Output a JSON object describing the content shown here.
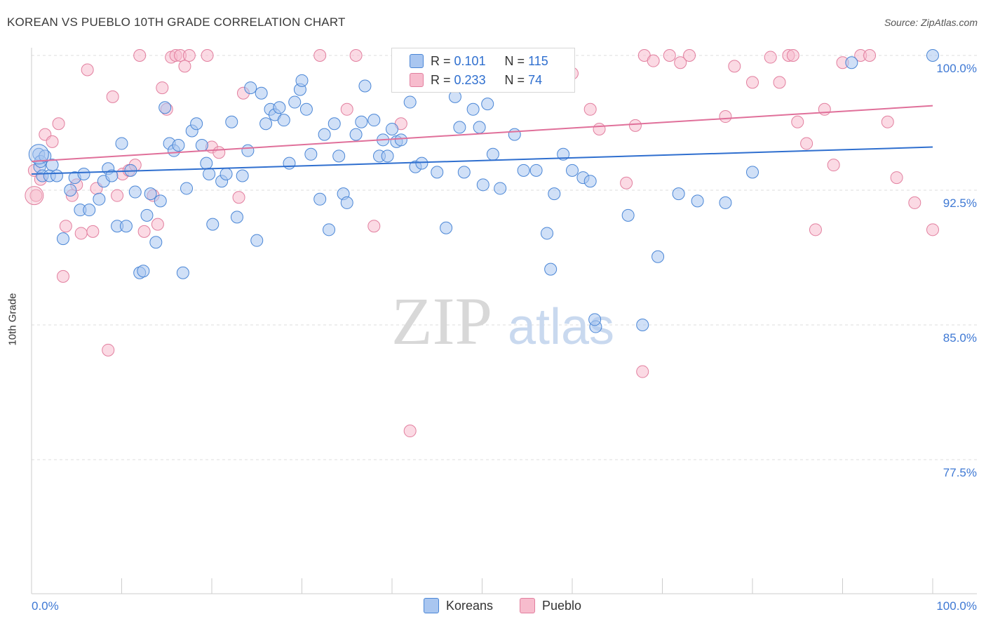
{
  "title": "KOREAN VS PUEBLO 10TH GRADE CORRELATION CHART",
  "source": "Source: ZipAtlas.com",
  "watermark": {
    "zip": "ZIP",
    "atlas": "atlas"
  },
  "legend": {
    "rows": [
      {
        "r_label": "R =",
        "r_value": "0.101",
        "n_label": "N =",
        "n_value": "115"
      },
      {
        "r_label": "R =",
        "r_value": "0.233",
        "n_label": "N =",
        "n_value": "74"
      }
    ]
  },
  "colors": {
    "korean_fill": "#a9c6f0",
    "korean_stroke": "#4a86d6",
    "korean_line": "#2f6fcf",
    "pueblo_fill": "#f7bccd",
    "pueblo_stroke": "#e27f9f",
    "pueblo_line": "#e0709a",
    "axis_label": "#3f79d4"
  },
  "chart_data": {
    "type": "scatter",
    "title": "KOREAN VS PUEBLO 10TH GRADE CORRELATION CHART",
    "xlabel": "",
    "ylabel": "10th Grade",
    "xlim": [
      0,
      100
    ],
    "ylim": [
      70.5,
      101.5
    ],
    "x_tick_labels": [
      "0.0%",
      "100.0%"
    ],
    "y_ticks": [
      77.5,
      85.0,
      92.5,
      100.0
    ],
    "y_tick_labels": [
      "77.5%",
      "85.0%",
      "92.5%",
      "100.0%"
    ],
    "grid": true,
    "legend_position": "top-center",
    "series": [
      {
        "name": "Koreans",
        "r": 0.101,
        "n": 115,
        "trend": {
          "x": [
            0,
            100
          ],
          "y": [
            93.4,
            94.9
          ]
        },
        "points": [
          [
            0.8,
            94.5
          ],
          [
            0.9,
            93.8
          ],
          [
            1.0,
            94.1
          ],
          [
            1.2,
            93.3
          ],
          [
            1.5,
            94.4
          ],
          [
            2.0,
            93.3
          ],
          [
            2.3,
            93.9
          ],
          [
            2.8,
            93.3
          ],
          [
            3.5,
            89.8
          ],
          [
            4.3,
            92.5
          ],
          [
            4.8,
            93.2
          ],
          [
            5.4,
            91.4
          ],
          [
            5.8,
            93.4
          ],
          [
            6.4,
            91.4
          ],
          [
            7.5,
            92.0
          ],
          [
            8.0,
            93.0
          ],
          [
            8.5,
            93.7
          ],
          [
            8.9,
            93.3
          ],
          [
            9.5,
            90.5
          ],
          [
            10.0,
            95.1
          ],
          [
            10.5,
            90.5
          ],
          [
            11.0,
            93.6
          ],
          [
            11.5,
            92.4
          ],
          [
            12.0,
            87.9
          ],
          [
            12.4,
            88.0
          ],
          [
            12.8,
            91.1
          ],
          [
            13.2,
            92.3
          ],
          [
            13.8,
            89.6
          ],
          [
            14.3,
            91.9
          ],
          [
            14.8,
            97.1
          ],
          [
            15.3,
            95.1
          ],
          [
            15.8,
            94.7
          ],
          [
            16.3,
            95.0
          ],
          [
            16.8,
            87.9
          ],
          [
            17.2,
            92.6
          ],
          [
            17.8,
            95.8
          ],
          [
            18.3,
            96.2
          ],
          [
            18.9,
            95.0
          ],
          [
            19.4,
            94.0
          ],
          [
            19.7,
            93.4
          ],
          [
            20.1,
            90.6
          ],
          [
            21.1,
            93.0
          ],
          [
            21.6,
            93.4
          ],
          [
            22.2,
            96.3
          ],
          [
            22.8,
            91.0
          ],
          [
            23.4,
            93.3
          ],
          [
            24.0,
            94.7
          ],
          [
            24.3,
            98.2
          ],
          [
            25.0,
            89.7
          ],
          [
            25.5,
            97.9
          ],
          [
            26.0,
            96.2
          ],
          [
            26.5,
            97.0
          ],
          [
            27.0,
            96.7
          ],
          [
            27.5,
            97.1
          ],
          [
            28.0,
            96.4
          ],
          [
            28.6,
            94.0
          ],
          [
            29.2,
            97.4
          ],
          [
            29.8,
            98.1
          ],
          [
            30.0,
            98.6
          ],
          [
            30.5,
            97.0
          ],
          [
            31.0,
            94.5
          ],
          [
            32.0,
            92.0
          ],
          [
            32.5,
            95.6
          ],
          [
            33.0,
            90.3
          ],
          [
            33.6,
            96.2
          ],
          [
            34.1,
            94.4
          ],
          [
            34.6,
            92.3
          ],
          [
            35.0,
            91.8
          ],
          [
            36.0,
            95.6
          ],
          [
            36.6,
            96.3
          ],
          [
            37.0,
            98.3
          ],
          [
            38.0,
            96.4
          ],
          [
            38.6,
            94.4
          ],
          [
            39.0,
            95.3
          ],
          [
            39.5,
            94.4
          ],
          [
            40.0,
            95.9
          ],
          [
            40.5,
            95.2
          ],
          [
            41.0,
            95.3
          ],
          [
            42.0,
            97.4
          ],
          [
            42.6,
            93.8
          ],
          [
            43.3,
            94.0
          ],
          [
            44.6,
            100.0
          ],
          [
            45.0,
            93.5
          ],
          [
            46.0,
            90.4
          ],
          [
            47.0,
            97.7
          ],
          [
            47.5,
            96.0
          ],
          [
            48.0,
            93.5
          ],
          [
            49.0,
            97.0
          ],
          [
            49.7,
            96.0
          ],
          [
            50.1,
            92.8
          ],
          [
            50.6,
            97.3
          ],
          [
            51.2,
            94.5
          ],
          [
            52.0,
            92.6
          ],
          [
            53.6,
            95.6
          ],
          [
            54.6,
            93.6
          ],
          [
            55.5,
            99.1
          ],
          [
            56.0,
            93.6
          ],
          [
            57.2,
            90.1
          ],
          [
            57.6,
            88.1
          ],
          [
            58.0,
            92.3
          ],
          [
            59.0,
            94.5
          ],
          [
            60.0,
            93.6
          ],
          [
            61.2,
            93.2
          ],
          [
            62.0,
            93.0
          ],
          [
            62.6,
            84.9
          ],
          [
            66.2,
            91.1
          ],
          [
            67.8,
            85.0
          ],
          [
            69.5,
            88.8
          ],
          [
            71.8,
            92.3
          ],
          [
            73.9,
            91.9
          ],
          [
            77.0,
            91.8
          ],
          [
            80.0,
            93.5
          ],
          [
            91.0,
            99.6
          ],
          [
            100.0,
            100.0
          ],
          [
            62.5,
            85.3
          ]
        ]
      },
      {
        "name": "Pueblo",
        "r": 0.233,
        "n": 74,
        "trend": {
          "x": [
            0,
            100
          ],
          "y": [
            94.1,
            97.2
          ]
        },
        "points": [
          [
            0.3,
            93.6
          ],
          [
            0.5,
            92.2
          ],
          [
            1.0,
            93.1
          ],
          [
            1.5,
            95.6
          ],
          [
            2.3,
            95.2
          ],
          [
            3.0,
            96.2
          ],
          [
            3.5,
            87.7
          ],
          [
            3.8,
            90.5
          ],
          [
            4.5,
            92.2
          ],
          [
            5.0,
            92.8
          ],
          [
            5.5,
            90.1
          ],
          [
            6.2,
            99.2
          ],
          [
            6.8,
            90.2
          ],
          [
            7.2,
            92.6
          ],
          [
            8.5,
            83.6
          ],
          [
            9.0,
            97.7
          ],
          [
            9.5,
            92.2
          ],
          [
            10.1,
            93.4
          ],
          [
            10.8,
            93.6
          ],
          [
            11.5,
            93.9
          ],
          [
            12.0,
            100.0
          ],
          [
            12.5,
            90.2
          ],
          [
            13.5,
            92.2
          ],
          [
            14.0,
            90.6
          ],
          [
            14.5,
            98.2
          ],
          [
            15.0,
            97.0
          ],
          [
            15.5,
            99.9
          ],
          [
            16.0,
            100.0
          ],
          [
            16.5,
            100.0
          ],
          [
            17.0,
            99.4
          ],
          [
            17.5,
            100.0
          ],
          [
            19.5,
            100.0
          ],
          [
            20.0,
            94.9
          ],
          [
            20.8,
            94.6
          ],
          [
            23.0,
            92.1
          ],
          [
            23.5,
            97.9
          ],
          [
            32.0,
            100.0
          ],
          [
            35.0,
            97.0
          ],
          [
            36.0,
            100.0
          ],
          [
            38.0,
            90.5
          ],
          [
            41.0,
            96.2
          ],
          [
            42.0,
            79.1
          ],
          [
            45.0,
            100.0
          ],
          [
            50.0,
            100.0
          ],
          [
            60.0,
            99.0
          ],
          [
            62.0,
            97.0
          ],
          [
            63.0,
            95.9
          ],
          [
            66.0,
            92.9
          ],
          [
            67.0,
            96.1
          ],
          [
            67.8,
            82.4
          ],
          [
            68.0,
            100.0
          ],
          [
            69.0,
            99.7
          ],
          [
            70.8,
            100.0
          ],
          [
            72.0,
            99.6
          ],
          [
            73.0,
            100.0
          ],
          [
            77.0,
            96.6
          ],
          [
            78.0,
            99.4
          ],
          [
            80.0,
            98.5
          ],
          [
            82.0,
            99.9
          ],
          [
            83.0,
            98.5
          ],
          [
            84.0,
            100.0
          ],
          [
            85.0,
            96.3
          ],
          [
            86.0,
            95.1
          ],
          [
            87.0,
            90.3
          ],
          [
            88.0,
            97.0
          ],
          [
            89.0,
            93.9
          ],
          [
            90.0,
            99.6
          ],
          [
            92.0,
            100.0
          ],
          [
            93.0,
            100.0
          ],
          [
            95.0,
            96.3
          ],
          [
            96.0,
            93.2
          ],
          [
            98.0,
            91.8
          ],
          [
            100.0,
            90.3
          ],
          [
            84.5,
            100.0
          ]
        ]
      }
    ]
  }
}
